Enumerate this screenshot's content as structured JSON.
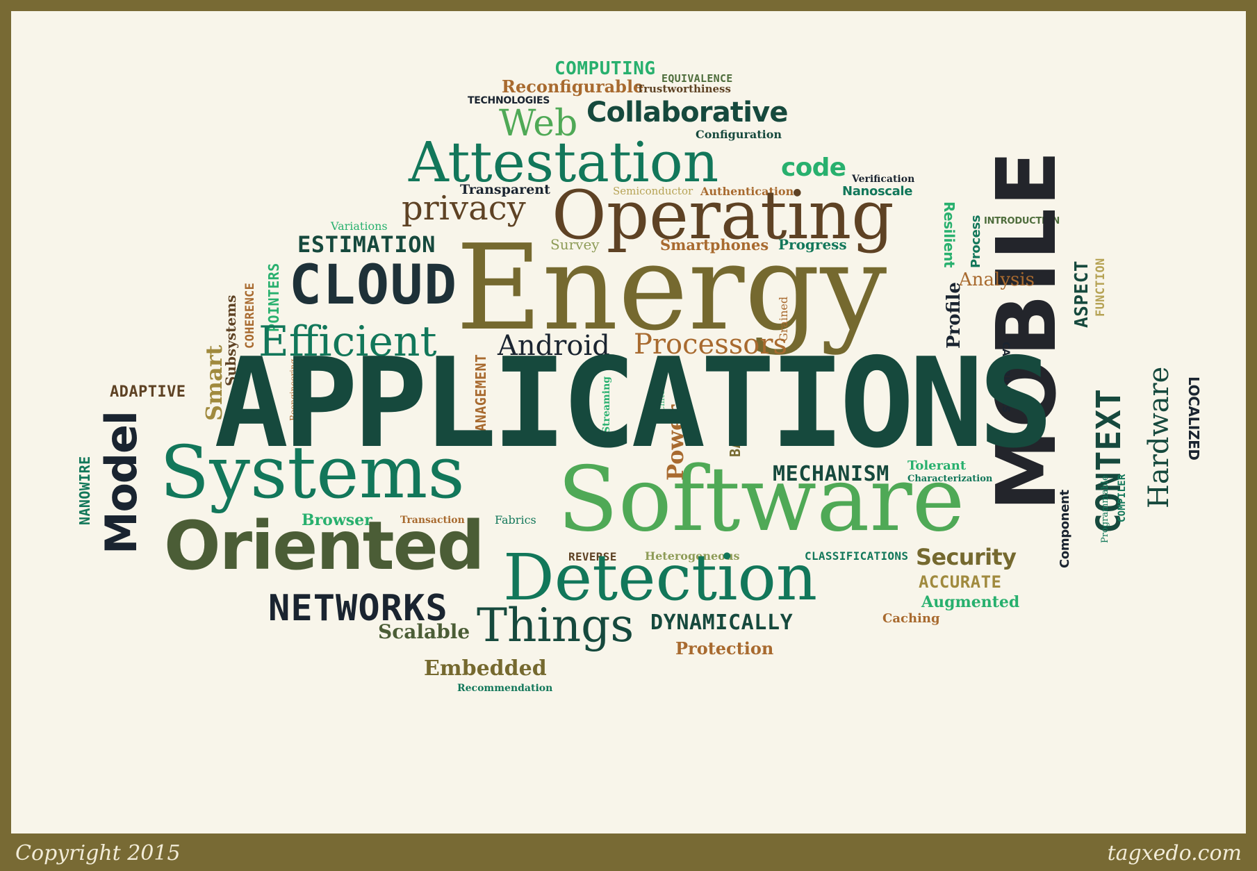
{
  "footer": {
    "left": "Copyright 2015",
    "right": "tagxedo.com"
  },
  "colors": {
    "frame": "#786a34",
    "background": "#f8f5ea",
    "dark_green": "#16493d",
    "teal": "#12775a",
    "olive": "#75692f",
    "brown": "#5e4224",
    "navy": "#1a2430",
    "light_green": "#4fa956",
    "bright_green": "#28b06e",
    "copper": "#a86a2f"
  },
  "words": {
    "computing": "COMPUTING",
    "equivalence": "EQUIVALENCE",
    "reconfigurable": "Reconfigurable",
    "trustworthiness": "Trustworthiness",
    "technologies": "TECHNOLOGIES",
    "web": "Web",
    "collaborative": "Collaborative",
    "configuration": "Configuration",
    "attestation": "Attestation",
    "code": "code",
    "verification": "Verification",
    "transparent": "Transparent",
    "semiconductor": "Semiconductor",
    "authentication": "Authentication",
    "nanoscale": "Nanoscale",
    "privacy": "privacy",
    "operating": "Operating",
    "resilient": "Resilient",
    "introduction": "INTRODUCTION",
    "process": "Process",
    "variations": "Variations",
    "estimation": "ESTIMATION",
    "survey": "Survey",
    "smartphones": "Smartphones",
    "progress": "Progress",
    "mobile": "MOBILE",
    "aspect": "ASPECT",
    "function": "FUNCTION",
    "cloud": "CLOUD",
    "energy": "Energy",
    "analysis": "Analysis",
    "pointers": "POINTERS",
    "coherence": "COHERENCE",
    "subsystems": "Subsystems",
    "grained": "Grained",
    "profile": "Profile",
    "capabilities": "CAPABILITIES",
    "context": "CONTEXT",
    "hardware": "Hardware",
    "localized": "LOCALIZED",
    "efficient": "Efficient",
    "android": "Android",
    "processors": "Processors",
    "smart": "Smart",
    "reengineering": "Reengineering",
    "management": "MANAGEMENT",
    "architectures": "Architectures",
    "adaptive": "ADAPTIVE",
    "applications": "APPLICATIONS",
    "streaming": "Streaming",
    "battery": "BATTERY",
    "power": "Power",
    "model": "Model",
    "nanowire": "NANOWIRE",
    "systems": "Systems",
    "mechanism": "MECHANISM",
    "tolerant": "Tolerant",
    "characterization": "Characterization",
    "software": "Software",
    "component": "Component",
    "programmable": "Programmable",
    "compiler": "COMPILER",
    "browser": "Browser",
    "transaction": "Transaction",
    "fabrics": "Fabrics",
    "oriented": "Oriented",
    "reverse": "REVERSE",
    "heterogeneous": "Heterogeneous",
    "classifications": "CLASSIFICATIONS",
    "security": "Security",
    "detection": "Detection",
    "accurate": "ACCURATE",
    "augmented": "Augmented",
    "networks": "NETWORKS",
    "caching": "Caching",
    "things": "Things",
    "dynamically": "DYNAMICALLY",
    "scalable": "Scalable",
    "protection": "Protection",
    "embedded": "Embedded",
    "recommendation": "Recommendation"
  }
}
